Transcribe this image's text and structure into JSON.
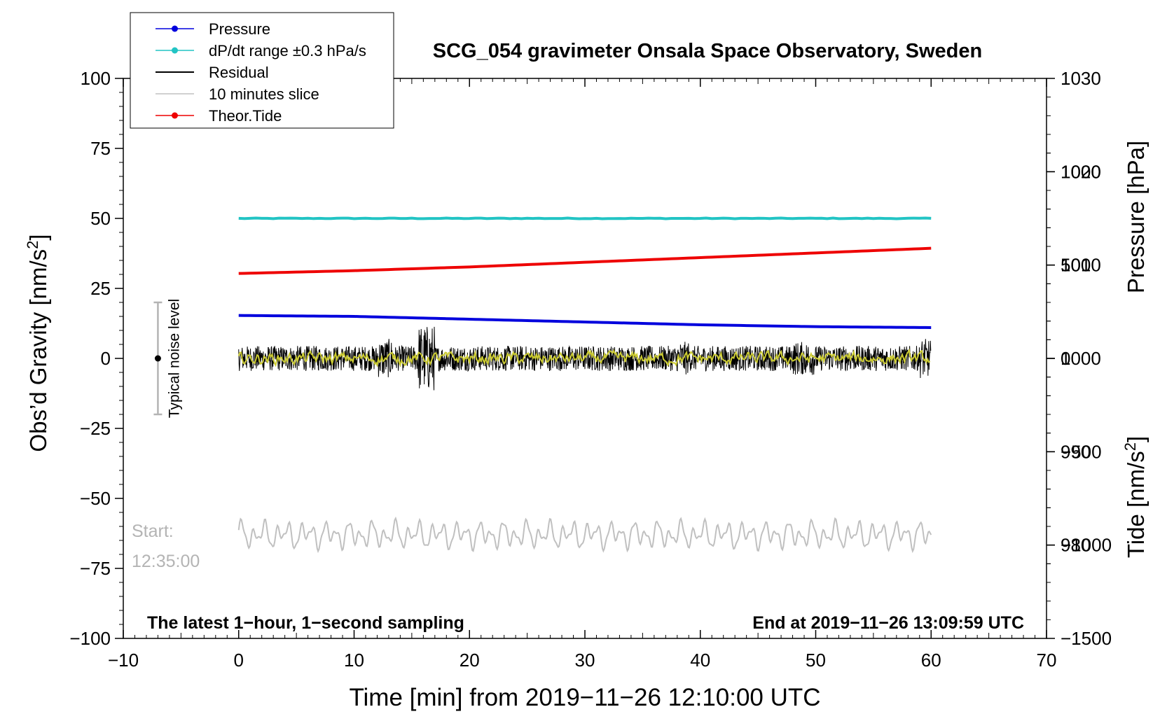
{
  "chart_data": {
    "type": "line",
    "title": "SCG_054 gravimeter Onsala Space Observatory, Sweden",
    "xlabel": "Time [min] from 2019−11−26 12:10:00 UTC",
    "ylabel_left": "Obs’d Gravity [nm/s²]",
    "ylabel_pressure": "Pressure [hPa]",
    "ylabel_tide": "Tide [nm/s²]",
    "xlim": [
      -10,
      70
    ],
    "ylim": [
      -100,
      100
    ],
    "pressure_lim": [
      970,
      1030
    ],
    "tide_lim": [
      -1500,
      1500
    ],
    "x_ticks": [
      "−10",
      "0",
      "10",
      "20",
      "30",
      "40",
      "50",
      "60",
      "70"
    ],
    "x_tick_values": [
      -10,
      0,
      10,
      20,
      30,
      40,
      50,
      60,
      70
    ],
    "y_ticks": [
      "100",
      "75",
      "50",
      "25",
      "0",
      "−25",
      "−50",
      "−75",
      "−100"
    ],
    "y_tick_values": [
      100,
      75,
      50,
      25,
      0,
      -25,
      -50,
      -75,
      -100
    ],
    "pressure_ticks": [
      "1030",
      "1020",
      "1010",
      "1000",
      "990",
      "980"
    ],
    "pressure_tick_values": [
      1030,
      1020,
      1010,
      1000,
      990,
      980
    ],
    "tide_ticks": [
      "1000",
      "500",
      "0",
      "−500",
      "−1000",
      "−1500"
    ],
    "tide_tick_values": [
      1000,
      500,
      0,
      -500,
      -1000,
      -1500
    ],
    "legend_position": "top-left",
    "series": [
      {
        "name": "Pressure",
        "axis": "pressure",
        "color": "#0000dd",
        "x": [
          0,
          10,
          20,
          30,
          40,
          50,
          60
        ],
        "values": [
          1004.6,
          1004.5,
          1004.2,
          1003.9,
          1003.6,
          1003.4,
          1003.3
        ]
      },
      {
        "name": "dP/dt range ±0.3 hPa/s",
        "axis": "gravity",
        "color": "#22c4c4",
        "x": [
          0,
          60
        ],
        "values": [
          50,
          50
        ]
      },
      {
        "name": "Residual",
        "axis": "gravity",
        "color": "#000000",
        "x": [
          0,
          60
        ],
        "amplitude_range": [
          -18,
          12
        ]
      },
      {
        "name": "10 minutes slice",
        "axis": "gravity",
        "color": "#c0c0c0",
        "x": [
          0,
          60
        ],
        "center": -63,
        "amplitude": 5
      },
      {
        "name": "Theor.Tide",
        "axis": "tide",
        "color": "#ee0000",
        "x": [
          0,
          10,
          20,
          30,
          40,
          50,
          60
        ],
        "values": [
          455,
          470,
          490,
          515,
          540,
          565,
          590
        ]
      }
    ],
    "noise_bar": {
      "label": "Typical noise level",
      "x": -7,
      "y_center": 0,
      "y_range": [
        -20,
        20
      ]
    },
    "annotations": {
      "start_label": "Start:",
      "start_time": "12:35:00",
      "bottom_left": "The latest 1−hour, 1−second sampling",
      "bottom_right": "End at 2019−11−26 13:09:59 UTC"
    }
  }
}
